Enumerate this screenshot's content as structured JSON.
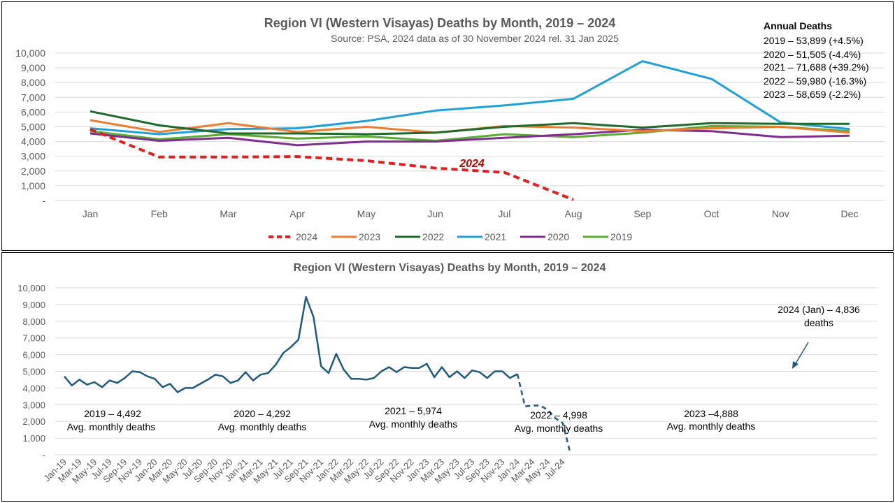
{
  "chart_data": [
    {
      "type": "line",
      "title": "Region VI (Western Visayas) Deaths by Month, 2019 – 2024",
      "subtitle": "Source: PSA, 2024 data as of 30 November 2024 rel. 31 Jan 2025",
      "categories": [
        "Jan",
        "Feb",
        "Mar",
        "Apr",
        "May",
        "Jun",
        "Jul",
        "Aug",
        "Sep",
        "Oct",
        "Nov",
        "Dec"
      ],
      "ylim": [
        0,
        10000
      ],
      "yticks": [
        "-",
        "1,000",
        "2,000",
        "3,000",
        "4,000",
        "5,000",
        "6,000",
        "7,000",
        "8,000",
        "9,000",
        "10,000"
      ],
      "grid": true,
      "legend_position": "bottom",
      "series": [
        {
          "name": "2024",
          "color": "#e02020",
          "dashed": true,
          "values": [
            4836,
            2950,
            2950,
            2980,
            2700,
            2200,
            1900,
            50,
            null,
            null,
            null,
            null
          ]
        },
        {
          "name": "2023",
          "color": "#ed7d31",
          "dashed": false,
          "values": [
            5450,
            4650,
            5250,
            4650,
            5000,
            4600,
            5050,
            4950,
            4700,
            4900,
            5000,
            4600
          ]
        },
        {
          "name": "2022",
          "color": "#1e6b2c",
          "dashed": false,
          "values": [
            6050,
            5100,
            4550,
            4550,
            4500,
            4600,
            5000,
            5250,
            4950,
            5250,
            5200,
            5200
          ]
        },
        {
          "name": "2021",
          "color": "#1fa0d8",
          "dashed": false,
          "values": [
            4900,
            4500,
            4850,
            4900,
            5400,
            6100,
            6450,
            6900,
            9450,
            8250,
            5300,
            4850
          ]
        },
        {
          "name": "2020",
          "color": "#7f2d8e",
          "dashed": false,
          "values": [
            4550,
            4050,
            4250,
            3750,
            4000,
            4000,
            4250,
            4500,
            4800,
            4700,
            4300,
            4400
          ]
        },
        {
          "name": "2019",
          "color": "#5aac34",
          "dashed": false,
          "values": [
            4700,
            4150,
            4500,
            4200,
            4350,
            4050,
            4500,
            4300,
            4600,
            5050,
            5000,
            4700
          ]
        }
      ],
      "annotation_2024": "2024",
      "annual_box": {
        "heading": "Annual Deaths",
        "lines": [
          "2019 – 53,899 (+4.5%)",
          "2020 – 51,505 (-4.4%)",
          "2021 – 71,688 (+39.2%)",
          "2022 – 59,980 (-16.3%)",
          "2023 – 58,659 (-2.2%)"
        ]
      }
    },
    {
      "type": "line",
      "title": "Region VI (Western Visayas) Deaths by Month, 2019 – 2024",
      "ylim": [
        0,
        10000
      ],
      "yticks": [
        "-",
        "1,000",
        "2,000",
        "3,000",
        "4,000",
        "5,000",
        "6,000",
        "7,000",
        "8,000",
        "9,000",
        "10,000"
      ],
      "xticklabels": [
        "Jan-19",
        "Mar-19",
        "May-19",
        "Jul-19",
        "Sep-19",
        "Nov-19",
        "Jan-20",
        "Mar-20",
        "May-20",
        "Jul-20",
        "Sep-20",
        "Nov-20",
        "Jan-21",
        "Mar-21",
        "May-21",
        "Jul-21",
        "Sep-21",
        "Nov-21",
        "Jan-22",
        "Mar-22",
        "May-22",
        "Jul-22",
        "Sep-22",
        "Nov-22",
        "Jan-23",
        "Mar-23",
        "May-23",
        "Jul-23",
        "Sep-23",
        "Nov-23",
        "Jan-24",
        "Mar-24",
        "May-24",
        "Jul-24"
      ],
      "grid": true,
      "color": "#1f5a7a",
      "solid_values": [
        4700,
        4150,
        4500,
        4200,
        4350,
        4050,
        4450,
        4300,
        4600,
        5000,
        4950,
        4700,
        4550,
        4050,
        4250,
        3750,
        4000,
        4000,
        4250,
        4500,
        4800,
        4700,
        4300,
        4450,
        4950,
        4450,
        4800,
        4900,
        5400,
        6100,
        6450,
        6900,
        9450,
        8250,
        5300,
        4900,
        6050,
        5100,
        4550,
        4550,
        4500,
        4600,
        5000,
        5250,
        4950,
        5250,
        5200,
        5200,
        5450,
        4650,
        5250,
        4650,
        5000,
        4600,
        5050,
        4950,
        4600,
        5000,
        5000,
        4600,
        4836
      ],
      "dashed_values": [
        4836,
        2900,
        2950,
        2950,
        2700,
        2200,
        1900,
        100
      ],
      "annotations": [
        {
          "title": "2019 – 4,492",
          "sub": "Avg. monthly deaths"
        },
        {
          "title": "2020 – 4,292",
          "sub": "Avg. monthly deaths"
        },
        {
          "title": "2021 – 5,974",
          "sub": "Avg. monthly deaths"
        },
        {
          "title": "2022 – 4,998",
          "sub": "Avg. monthly deaths"
        },
        {
          "title": "2023 –4,888",
          "sub": "Avg. monthly deaths"
        }
      ],
      "callout": {
        "line1": "2024 (Jan) – 4,836",
        "line2": "deaths"
      }
    }
  ]
}
